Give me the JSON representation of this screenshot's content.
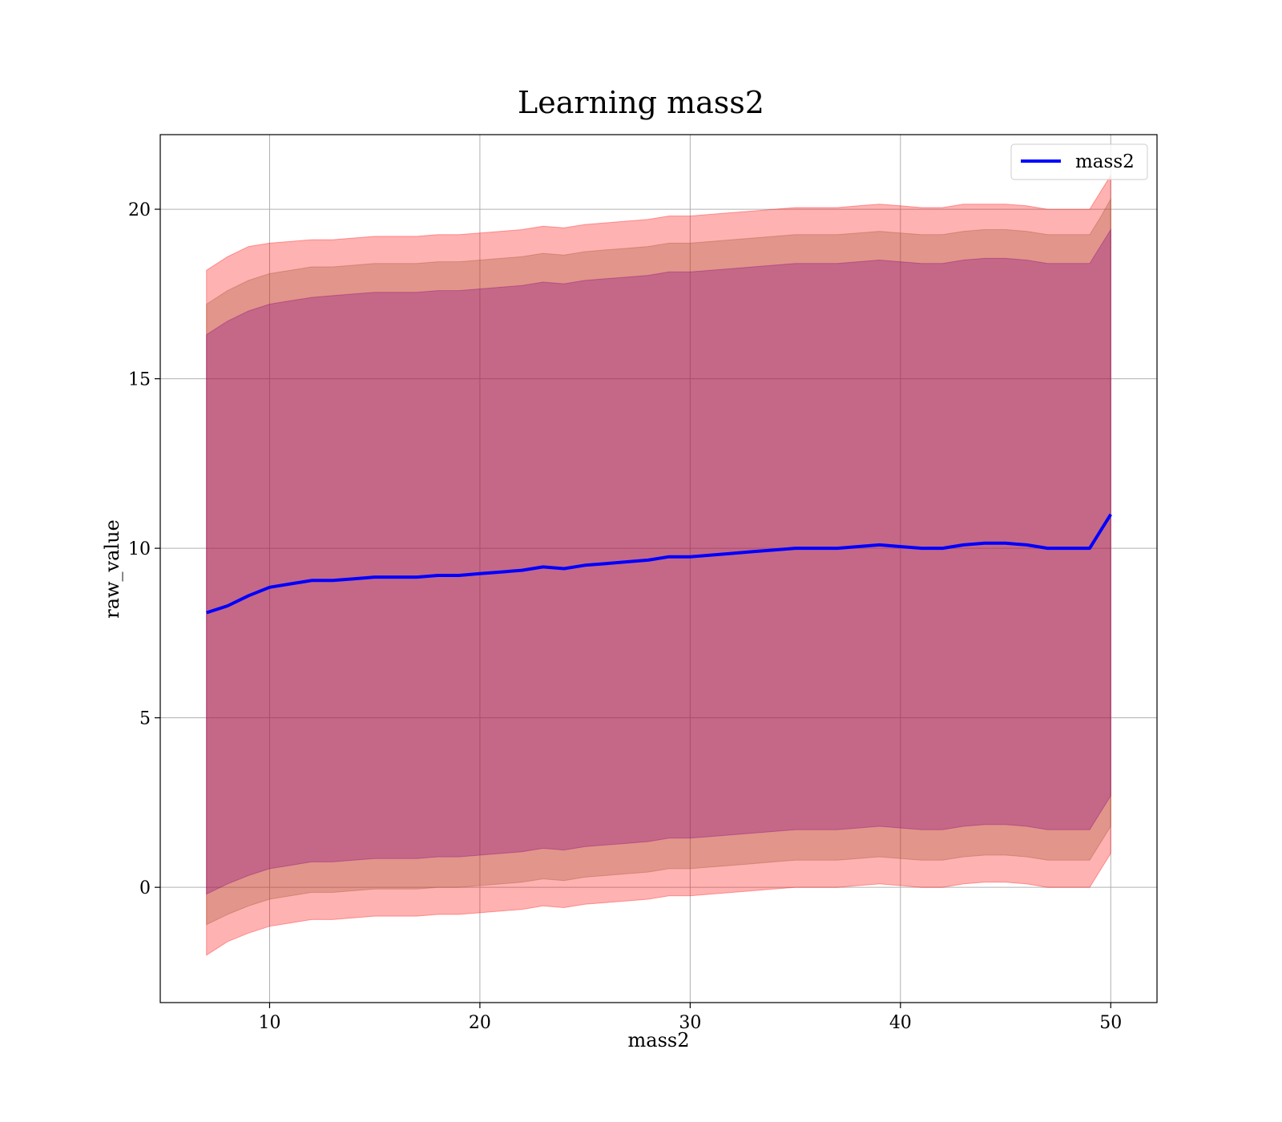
{
  "chart_data": {
    "type": "line",
    "title": "Learning mass2",
    "xlabel": "mass2",
    "ylabel": "raw_value",
    "xlim": [
      4.8,
      52.2
    ],
    "ylim": [
      -3.4,
      22.2
    ],
    "xticks": [
      10,
      20,
      30,
      40,
      50
    ],
    "yticks": [
      0,
      5,
      10,
      15,
      20
    ],
    "grid": true,
    "legend_position": "top-right",
    "colors": {
      "line": "#0000ff",
      "band_outer": "#ff0000",
      "band_middle": "#a0522d",
      "band_inner": "#800080"
    },
    "series": [
      {
        "name": "mass2",
        "x": [
          7,
          8,
          9,
          10,
          11,
          12,
          13,
          14,
          15,
          16,
          17,
          18,
          19,
          20,
          21,
          22,
          23,
          24,
          25,
          26,
          27,
          28,
          29,
          30,
          31,
          32,
          33,
          34,
          35,
          36,
          37,
          38,
          39,
          40,
          41,
          42,
          43,
          44,
          45,
          46,
          47,
          48,
          49,
          49.5,
          50
        ],
        "y": [
          8.1,
          8.3,
          8.6,
          8.85,
          8.95,
          9.05,
          9.05,
          9.1,
          9.15,
          9.15,
          9.15,
          9.2,
          9.2,
          9.25,
          9.3,
          9.35,
          9.45,
          9.4,
          9.5,
          9.55,
          9.6,
          9.65,
          9.75,
          9.75,
          9.8,
          9.85,
          9.9,
          9.95,
          10.0,
          10.0,
          10.0,
          10.05,
          10.1,
          10.05,
          10.0,
          10.0,
          10.1,
          10.15,
          10.15,
          10.1,
          10.0,
          10.0,
          10.0,
          10.5,
          11.0
        ]
      }
    ],
    "bands": [
      {
        "role": "outer",
        "upper": [
          18.2,
          18.6,
          18.9,
          19.0,
          19.05,
          19.1,
          19.1,
          19.15,
          19.2,
          19.2,
          19.2,
          19.25,
          19.25,
          19.3,
          19.35,
          19.4,
          19.5,
          19.45,
          19.55,
          19.6,
          19.65,
          19.7,
          19.8,
          19.8,
          19.85,
          19.9,
          19.95,
          20.0,
          20.05,
          20.05,
          20.05,
          20.1,
          20.15,
          20.1,
          20.05,
          20.05,
          20.15,
          20.15,
          20.15,
          20.1,
          20.0,
          20.0,
          20.0,
          20.5,
          21.0
        ],
        "lower": [
          -2.0,
          -1.6,
          -1.35,
          -1.15,
          -1.05,
          -0.95,
          -0.95,
          -0.9,
          -0.85,
          -0.85,
          -0.85,
          -0.8,
          -0.8,
          -0.75,
          -0.7,
          -0.65,
          -0.55,
          -0.6,
          -0.5,
          -0.45,
          -0.4,
          -0.35,
          -0.25,
          -0.25,
          -0.2,
          -0.15,
          -0.1,
          -0.05,
          0.0,
          0.0,
          0.0,
          0.05,
          0.1,
          0.05,
          0.0,
          0.0,
          0.1,
          0.15,
          0.15,
          0.1,
          0.0,
          0.0,
          0.0,
          0.5,
          1.0
        ]
      },
      {
        "role": "middle",
        "upper": [
          17.2,
          17.6,
          17.9,
          18.1,
          18.2,
          18.3,
          18.3,
          18.35,
          18.4,
          18.4,
          18.4,
          18.45,
          18.45,
          18.5,
          18.55,
          18.6,
          18.7,
          18.65,
          18.75,
          18.8,
          18.85,
          18.9,
          19.0,
          19.0,
          19.05,
          19.1,
          19.15,
          19.2,
          19.25,
          19.25,
          19.25,
          19.3,
          19.35,
          19.3,
          19.25,
          19.25,
          19.35,
          19.4,
          19.4,
          19.35,
          19.25,
          19.25,
          19.25,
          19.75,
          20.3
        ],
        "lower": [
          -1.1,
          -0.8,
          -0.55,
          -0.35,
          -0.25,
          -0.15,
          -0.15,
          -0.1,
          -0.05,
          -0.05,
          -0.05,
          0.0,
          0.0,
          0.05,
          0.1,
          0.15,
          0.25,
          0.2,
          0.3,
          0.35,
          0.4,
          0.45,
          0.55,
          0.55,
          0.6,
          0.65,
          0.7,
          0.75,
          0.8,
          0.8,
          0.8,
          0.85,
          0.9,
          0.85,
          0.8,
          0.8,
          0.9,
          0.95,
          0.95,
          0.9,
          0.8,
          0.8,
          0.8,
          1.3,
          1.8
        ]
      },
      {
        "role": "inner",
        "upper": [
          16.3,
          16.7,
          17.0,
          17.2,
          17.3,
          17.4,
          17.45,
          17.5,
          17.55,
          17.55,
          17.55,
          17.6,
          17.6,
          17.65,
          17.7,
          17.75,
          17.85,
          17.8,
          17.9,
          17.95,
          18.0,
          18.05,
          18.15,
          18.15,
          18.2,
          18.25,
          18.3,
          18.35,
          18.4,
          18.4,
          18.4,
          18.45,
          18.5,
          18.45,
          18.4,
          18.4,
          18.5,
          18.55,
          18.55,
          18.5,
          18.4,
          18.4,
          18.4,
          18.9,
          19.4
        ],
        "lower": [
          -0.2,
          0.1,
          0.35,
          0.55,
          0.65,
          0.75,
          0.75,
          0.8,
          0.85,
          0.85,
          0.85,
          0.9,
          0.9,
          0.95,
          1.0,
          1.05,
          1.15,
          1.1,
          1.2,
          1.25,
          1.3,
          1.35,
          1.45,
          1.45,
          1.5,
          1.55,
          1.6,
          1.65,
          1.7,
          1.7,
          1.7,
          1.75,
          1.8,
          1.75,
          1.7,
          1.7,
          1.8,
          1.85,
          1.85,
          1.8,
          1.7,
          1.7,
          1.7,
          2.2,
          2.7
        ]
      }
    ]
  }
}
